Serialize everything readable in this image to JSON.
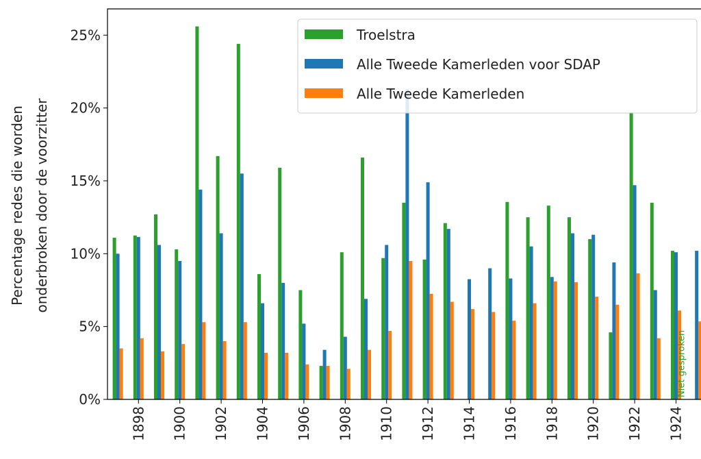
{
  "chart_data": {
    "type": "bar",
    "ylabel": [
      "Percentage redes die worden",
      "onderbroken door de voorzitter"
    ],
    "annotation": "Niet gesproken",
    "categories": [
      null,
      "1898",
      null,
      "1900",
      null,
      "1902",
      null,
      "1904",
      null,
      "1906",
      null,
      "1908",
      null,
      "1910",
      null,
      "1912",
      null,
      "1914",
      null,
      "1916",
      null,
      "1918",
      null,
      "1920",
      null,
      "1922",
      null,
      "1924",
      null
    ],
    "series": [
      {
        "name": "Troelstra",
        "color": "#2ca02c",
        "values": [
          11.1,
          11.25,
          12.7,
          10.3,
          25.6,
          16.7,
          24.4,
          8.6,
          15.9,
          7.5,
          2.3,
          10.1,
          16.6,
          9.7,
          13.5,
          9.6,
          12.1,
          null,
          null,
          13.55,
          12.5,
          13.3,
          12.5,
          11.0,
          4.6,
          19.7,
          13.5,
          10.2,
          null
        ]
      },
      {
        "name": "Alle Tweede Kamerleden voor SDAP",
        "color": "#1f77b4",
        "values": [
          10.0,
          11.15,
          10.6,
          9.5,
          14.4,
          11.4,
          15.5,
          6.6,
          8.0,
          5.2,
          3.4,
          4.3,
          6.9,
          10.6,
          21.3,
          14.9,
          11.7,
          8.25,
          9.0,
          8.3,
          10.5,
          8.4,
          11.4,
          11.3,
          9.4,
          14.7,
          7.5,
          10.1,
          10.2
        ]
      },
      {
        "name": "Alle Tweede Kamerleden",
        "color": "#ff7f0e",
        "values": [
          3.5,
          4.2,
          3.3,
          3.8,
          5.3,
          4.0,
          5.3,
          3.2,
          3.2,
          2.4,
          2.3,
          2.1,
          3.4,
          4.7,
          9.5,
          7.25,
          6.7,
          6.2,
          6.0,
          5.4,
          6.6,
          8.1,
          8.05,
          7.05,
          6.5,
          8.65,
          4.2,
          6.1,
          5.35
        ]
      }
    ],
    "ylim": [
      0,
      26.8
    ],
    "yticks": [
      {
        "value": 0,
        "label": "0%"
      },
      {
        "value": 5,
        "label": "5%"
      },
      {
        "value": 10,
        "label": "10%"
      },
      {
        "value": 15,
        "label": "15%"
      },
      {
        "value": 20,
        "label": "20%"
      },
      {
        "value": 25,
        "label": "25%"
      }
    ],
    "legend": "upper right"
  }
}
